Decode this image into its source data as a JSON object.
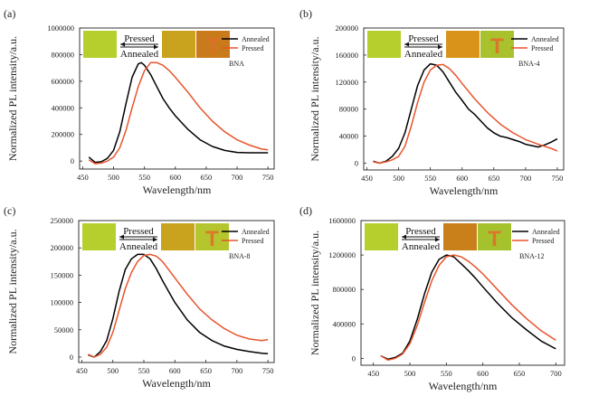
{
  "chart_data": [
    {
      "panel": "(a)",
      "type": "line",
      "sample": "BNA",
      "xlabel": "Wavelength/nm",
      "ylabel": "Normalized PL intensity/a.u.",
      "xlim": [
        445,
        760
      ],
      "ylim": [
        -60000,
        1000000
      ],
      "xticks": [
        450,
        500,
        550,
        600,
        650,
        700,
        750
      ],
      "yticks": [
        0,
        200000,
        400000,
        600000,
        800000,
        1000000
      ],
      "inset": {
        "pressed_label": "Pressed",
        "annealed_label": "Annealed",
        "stamp_letter": "T",
        "colors": [
          "#b7cf2d",
          "#c9a21e",
          "#c97a1a"
        ]
      },
      "series": [
        {
          "name": "Annealed",
          "color": "#000000",
          "x": [
            460,
            470,
            480,
            490,
            500,
            510,
            520,
            530,
            540,
            545,
            550,
            560,
            570,
            580,
            590,
            600,
            620,
            640,
            660,
            680,
            700,
            720,
            740,
            750
          ],
          "y": [
            30000,
            -10000,
            -5000,
            20000,
            80000,
            220000,
            430000,
            630000,
            730000,
            740000,
            720000,
            650000,
            560000,
            470000,
            400000,
            340000,
            240000,
            160000,
            110000,
            80000,
            65000,
            62000,
            62000,
            62000
          ]
        },
        {
          "name": "Pressed",
          "color": "#e8542b",
          "x": [
            460,
            470,
            480,
            490,
            500,
            510,
            520,
            530,
            540,
            550,
            560,
            570,
            580,
            590,
            600,
            620,
            640,
            660,
            680,
            700,
            720,
            740,
            750
          ],
          "y": [
            10000,
            -20000,
            -15000,
            0,
            30000,
            100000,
            230000,
            400000,
            560000,
            680000,
            740000,
            740000,
            720000,
            680000,
            630000,
            520000,
            400000,
            300000,
            220000,
            160000,
            120000,
            90000,
            85000
          ]
        }
      ]
    },
    {
      "panel": "(b)",
      "type": "line",
      "sample": "BNA-4",
      "xlabel": "Wavelength/nm",
      "ylabel": "Normalized PL intensity/a.u.",
      "xlim": [
        445,
        760
      ],
      "ylim": [
        -10000,
        200000
      ],
      "xticks": [
        450,
        500,
        550,
        600,
        650,
        700,
        750
      ],
      "yticks": [
        0,
        40000,
        80000,
        120000,
        160000,
        200000
      ],
      "inset": {
        "pressed_label": "Pressed",
        "annealed_label": "Annealed",
        "stamp_letter": "T",
        "colors": [
          "#b7cf2d",
          "#d9931a",
          "#a9c12d"
        ]
      },
      "series": [
        {
          "name": "Annealed",
          "color": "#000000",
          "x": [
            460,
            470,
            480,
            490,
            500,
            510,
            520,
            530,
            540,
            550,
            560,
            570,
            580,
            590,
            600,
            610,
            620,
            630,
            640,
            650,
            660,
            670,
            680,
            690,
            700,
            710,
            720,
            730,
            740,
            750
          ],
          "y": [
            3000,
            0,
            3000,
            10000,
            22000,
            45000,
            80000,
            115000,
            138000,
            147000,
            145000,
            135000,
            120000,
            105000,
            93000,
            80000,
            72000,
            62000,
            52000,
            45000,
            40000,
            38000,
            35000,
            32000,
            28000,
            26000,
            24000,
            27000,
            31000,
            36000
          ]
        },
        {
          "name": "Pressed",
          "color": "#e8542b",
          "x": [
            460,
            470,
            480,
            490,
            500,
            510,
            520,
            530,
            540,
            550,
            560,
            570,
            580,
            590,
            600,
            620,
            640,
            660,
            680,
            700,
            720,
            740,
            750
          ],
          "y": [
            2000,
            0,
            2000,
            5000,
            10000,
            25000,
            55000,
            90000,
            120000,
            138000,
            145000,
            146000,
            140000,
            130000,
            118000,
            95000,
            75000,
            58000,
            45000,
            35000,
            28000,
            22000,
            18000
          ]
        }
      ]
    },
    {
      "panel": "(c)",
      "type": "line",
      "sample": "BNA-8",
      "xlabel": "Wavelength/nm",
      "ylabel": "Normalized PL intensity/a.u.",
      "xlim": [
        445,
        760
      ],
      "ylim": [
        -10000,
        250000
      ],
      "xticks": [
        450,
        500,
        550,
        600,
        650,
        700,
        750
      ],
      "yticks": [
        0,
        50000,
        100000,
        150000,
        200000,
        250000
      ],
      "inset": {
        "pressed_label": "Pressed",
        "annealed_label": "Annealed",
        "stamp_letter": "T",
        "colors": [
          "#b7cf2d",
          "#c9a21e",
          "#b5c52d"
        ]
      },
      "series": [
        {
          "name": "Annealed",
          "color": "#000000",
          "x": [
            460,
            470,
            480,
            490,
            500,
            510,
            520,
            530,
            540,
            550,
            560,
            570,
            580,
            590,
            600,
            620,
            640,
            660,
            680,
            700,
            720,
            740,
            750
          ],
          "y": [
            4000,
            0,
            10000,
            30000,
            70000,
            120000,
            160000,
            180000,
            188000,
            188000,
            180000,
            162000,
            140000,
            120000,
            100000,
            68000,
            45000,
            30000,
            20000,
            14000,
            10000,
            7000,
            6000
          ]
        },
        {
          "name": "Pressed",
          "color": "#e8542b",
          "x": [
            460,
            470,
            480,
            490,
            500,
            510,
            520,
            530,
            540,
            550,
            560,
            570,
            580,
            590,
            600,
            620,
            640,
            660,
            680,
            700,
            720,
            740,
            750
          ],
          "y": [
            5000,
            0,
            5000,
            18000,
            45000,
            85000,
            125000,
            155000,
            175000,
            186000,
            188000,
            185000,
            175000,
            160000,
            145000,
            115000,
            88000,
            68000,
            52000,
            40000,
            33000,
            30000,
            32000
          ]
        }
      ]
    },
    {
      "panel": "(d)",
      "type": "line",
      "sample": "BNA-12",
      "xlabel": "Wavelength/nm",
      "ylabel": "Normalized PL intensity/a.u.",
      "xlim": [
        433,
        712
      ],
      "ylim": [
        -80000,
        1600000
      ],
      "xticks": [
        450,
        500,
        550,
        600,
        650,
        700
      ],
      "yticks": [
        0,
        400000,
        800000,
        1200000,
        1600000
      ],
      "inset": {
        "pressed_label": "Pressed",
        "annealed_label": "Annealed",
        "stamp_letter": "T",
        "colors": [
          "#b7cf2d",
          "#c9801a",
          "#a5c22d"
        ]
      },
      "series": [
        {
          "name": "Annealed",
          "color": "#000000",
          "x": [
            460,
            470,
            480,
            490,
            500,
            510,
            520,
            530,
            540,
            550,
            560,
            570,
            580,
            590,
            600,
            620,
            640,
            660,
            680,
            700
          ],
          "y": [
            30000,
            -10000,
            10000,
            60000,
            200000,
            450000,
            750000,
            1000000,
            1150000,
            1200000,
            1180000,
            1100000,
            1020000,
            930000,
            830000,
            640000,
            470000,
            330000,
            200000,
            110000
          ]
        },
        {
          "name": "Pressed",
          "color": "#e8542b",
          "x": [
            460,
            470,
            480,
            490,
            500,
            510,
            520,
            530,
            540,
            550,
            560,
            570,
            580,
            590,
            600,
            620,
            640,
            660,
            680,
            700
          ],
          "y": [
            30000,
            -20000,
            0,
            50000,
            170000,
            380000,
            650000,
            900000,
            1080000,
            1180000,
            1200000,
            1180000,
            1130000,
            1060000,
            980000,
            800000,
            620000,
            460000,
            320000,
            210000
          ]
        }
      ]
    }
  ]
}
